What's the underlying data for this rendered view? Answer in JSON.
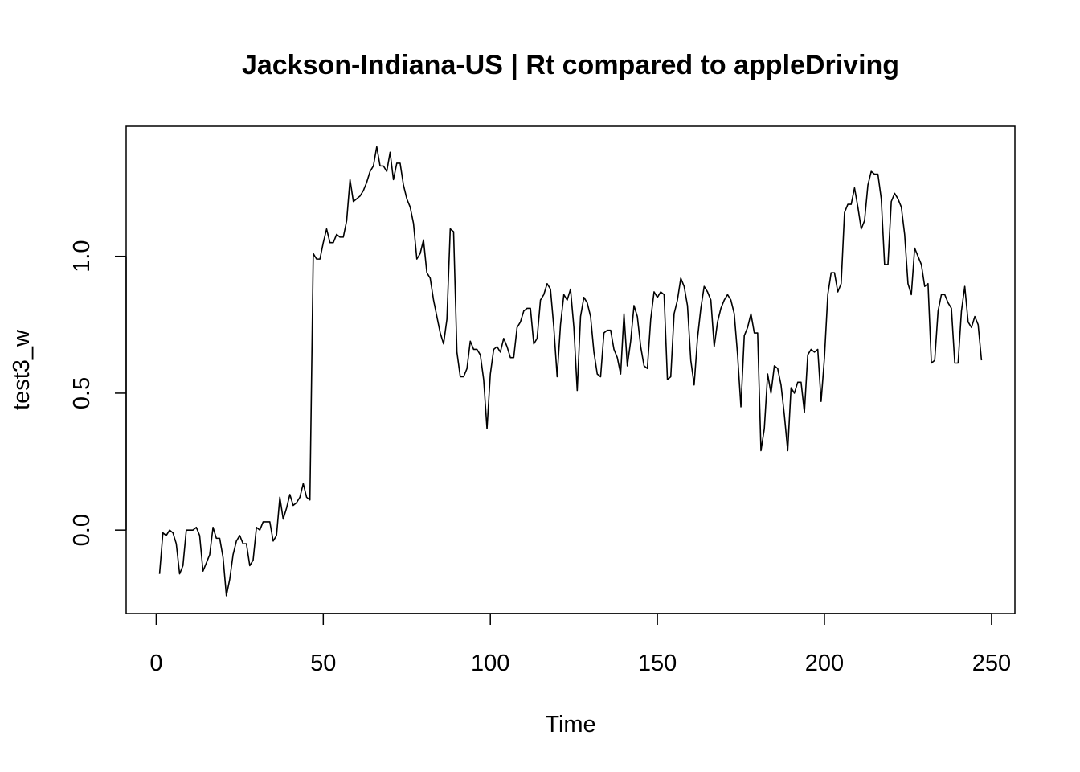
{
  "chart_data": {
    "type": "line",
    "title": "Jackson-Indiana-US | Rt compared to appleDriving",
    "xlabel": "Time",
    "ylabel": "test3_w",
    "xlim": [
      -9,
      257
    ],
    "ylim": [
      -0.305,
      1.475
    ],
    "x_ticks": [
      0,
      50,
      100,
      150,
      200,
      250
    ],
    "x_tick_labels": [
      "0",
      "50",
      "100",
      "150",
      "200",
      "250"
    ],
    "y_ticks": [
      0.0,
      0.5,
      1.0
    ],
    "y_tick_labels": [
      "0.0",
      "0.5",
      "1.0"
    ],
    "grid": false,
    "legend": "none",
    "line_color": "#000000",
    "x_start": 1,
    "values": [
      -0.16,
      -0.01,
      -0.02,
      0.0,
      -0.01,
      -0.05,
      -0.16,
      -0.13,
      0.0,
      0.0,
      0.0,
      0.01,
      -0.02,
      -0.15,
      -0.12,
      -0.09,
      0.01,
      -0.03,
      -0.03,
      -0.1,
      -0.24,
      -0.18,
      -0.09,
      -0.04,
      -0.02,
      -0.05,
      -0.05,
      -0.13,
      -0.11,
      0.01,
      0.0,
      0.03,
      0.03,
      0.03,
      -0.04,
      -0.02,
      0.12,
      0.04,
      0.08,
      0.13,
      0.09,
      0.1,
      0.12,
      0.17,
      0.12,
      0.11,
      1.01,
      0.99,
      0.99,
      1.05,
      1.1,
      1.05,
      1.05,
      1.08,
      1.07,
      1.07,
      1.13,
      1.28,
      1.2,
      1.21,
      1.22,
      1.24,
      1.27,
      1.31,
      1.33,
      1.4,
      1.33,
      1.33,
      1.31,
      1.38,
      1.28,
      1.34,
      1.34,
      1.26,
      1.21,
      1.18,
      1.12,
      0.99,
      1.01,
      1.06,
      0.94,
      0.92,
      0.84,
      0.78,
      0.72,
      0.68,
      0.77,
      1.1,
      1.09,
      0.65,
      0.56,
      0.56,
      0.59,
      0.69,
      0.66,
      0.66,
      0.64,
      0.55,
      0.37,
      0.57,
      0.66,
      0.67,
      0.65,
      0.7,
      0.67,
      0.63,
      0.63,
      0.74,
      0.76,
      0.8,
      0.81,
      0.81,
      0.68,
      0.7,
      0.84,
      0.86,
      0.9,
      0.88,
      0.74,
      0.56,
      0.75,
      0.86,
      0.84,
      0.88,
      0.74,
      0.51,
      0.78,
      0.85,
      0.83,
      0.78,
      0.65,
      0.57,
      0.56,
      0.72,
      0.73,
      0.73,
      0.66,
      0.63,
      0.57,
      0.79,
      0.6,
      0.69,
      0.82,
      0.78,
      0.67,
      0.6,
      0.59,
      0.77,
      0.87,
      0.85,
      0.87,
      0.86,
      0.55,
      0.56,
      0.79,
      0.84,
      0.92,
      0.89,
      0.82,
      0.62,
      0.53,
      0.7,
      0.81,
      0.89,
      0.87,
      0.84,
      0.67,
      0.76,
      0.81,
      0.84,
      0.86,
      0.84,
      0.79,
      0.64,
      0.45,
      0.71,
      0.74,
      0.79,
      0.72,
      0.72,
      0.29,
      0.37,
      0.57,
      0.5,
      0.6,
      0.59,
      0.53,
      0.42,
      0.29,
      0.52,
      0.5,
      0.54,
      0.54,
      0.43,
      0.64,
      0.66,
      0.65,
      0.66,
      0.47,
      0.63,
      0.86,
      0.94,
      0.94,
      0.87,
      0.9,
      1.16,
      1.19,
      1.19,
      1.25,
      1.18,
      1.1,
      1.13,
      1.26,
      1.31,
      1.3,
      1.3,
      1.21,
      0.97,
      0.97,
      1.2,
      1.23,
      1.21,
      1.18,
      1.08,
      0.9,
      0.86,
      1.03,
      1.0,
      0.97,
      0.89,
      0.9,
      0.61,
      0.62,
      0.8,
      0.86,
      0.86,
      0.83,
      0.81,
      0.61,
      0.61,
      0.8,
      0.89,
      0.76,
      0.74,
      0.78,
      0.75,
      0.62
    ]
  }
}
